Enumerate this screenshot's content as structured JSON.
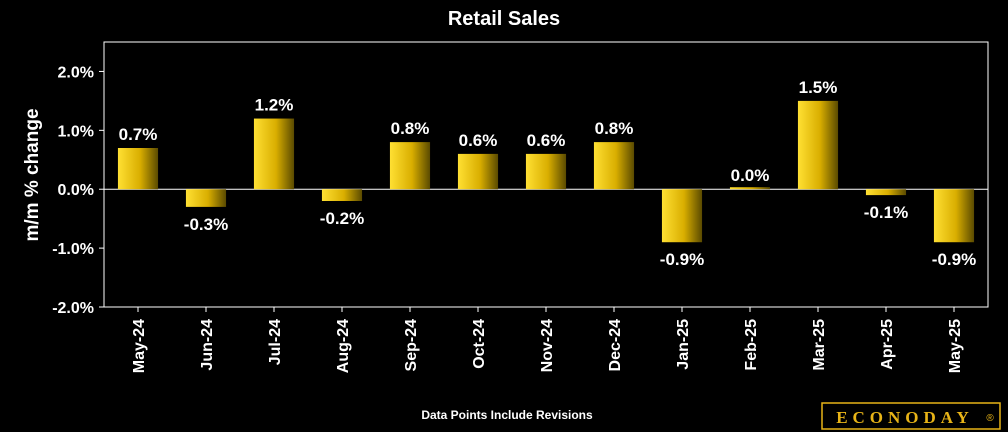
{
  "chart_data": {
    "type": "bar",
    "title": "Retail Sales",
    "ylabel": "m/m % change",
    "xlabel": "",
    "categories": [
      "May-24",
      "Jun-24",
      "Jul-24",
      "Aug-24",
      "Sep-24",
      "Oct-24",
      "Nov-24",
      "Dec-24",
      "Jan-25",
      "Feb-25",
      "Mar-25",
      "Apr-25",
      "May-25"
    ],
    "values": [
      0.7,
      -0.3,
      1.2,
      -0.2,
      0.8,
      0.6,
      0.6,
      0.8,
      -0.9,
      0.0,
      1.5,
      -0.1,
      -0.9
    ],
    "data_labels": [
      "0.7%",
      "-0.3%",
      "1.2%",
      "-0.2%",
      "0.8%",
      "0.6%",
      "0.6%",
      "0.8%",
      "-0.9%",
      "0.0%",
      "1.5%",
      "-0.1%",
      "-0.9%"
    ],
    "ylim": [
      -2.0,
      2.5
    ],
    "yticks": [
      2.0,
      1.0,
      0.0,
      -1.0,
      -2.0
    ],
    "ytick_labels": [
      "2.0%",
      "1.0%",
      "0.0%",
      "-1.0%",
      "-2.0%"
    ],
    "grid": false,
    "legend": "none",
    "colors": {
      "background": "#000000",
      "bar_light": "#ffe033",
      "bar_dark": "#5a4a00",
      "axis": "#ffffff",
      "text": "#ffffff"
    }
  },
  "footer": {
    "note": "Data Points Include Revisions",
    "brand": "ECONODAY",
    "brand_mark": "®",
    "brand_color": "#e8b417"
  }
}
